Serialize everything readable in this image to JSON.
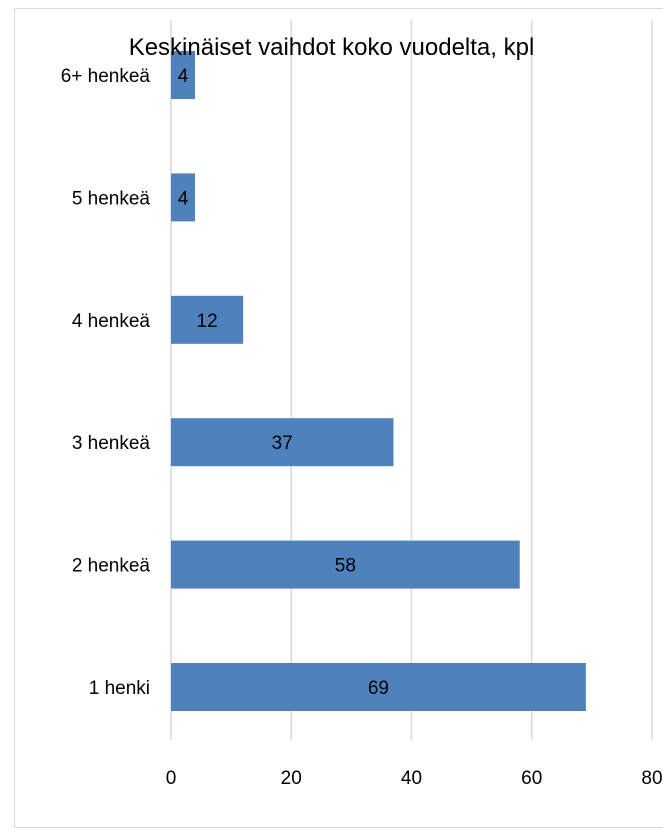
{
  "chart_data": {
    "type": "bar",
    "orientation": "horizontal",
    "title": "Keskinäiset vaihdot koko vuodelta, kpl",
    "categories": [
      "1 henki",
      "2 henkeä",
      "3 henkeä",
      "4 henkeä",
      "5 henkeä",
      "6+ henkeä"
    ],
    "values": [
      69,
      58,
      37,
      12,
      4,
      4
    ],
    "xlim": [
      0,
      80
    ],
    "xticks": [
      0,
      20,
      40,
      60,
      80
    ],
    "xlabel": "",
    "ylabel": "",
    "grid": "vertical",
    "legend": "none",
    "bar_color": "#4f81bd",
    "grid_color": "#d9d9d9",
    "data_labels": true
  }
}
